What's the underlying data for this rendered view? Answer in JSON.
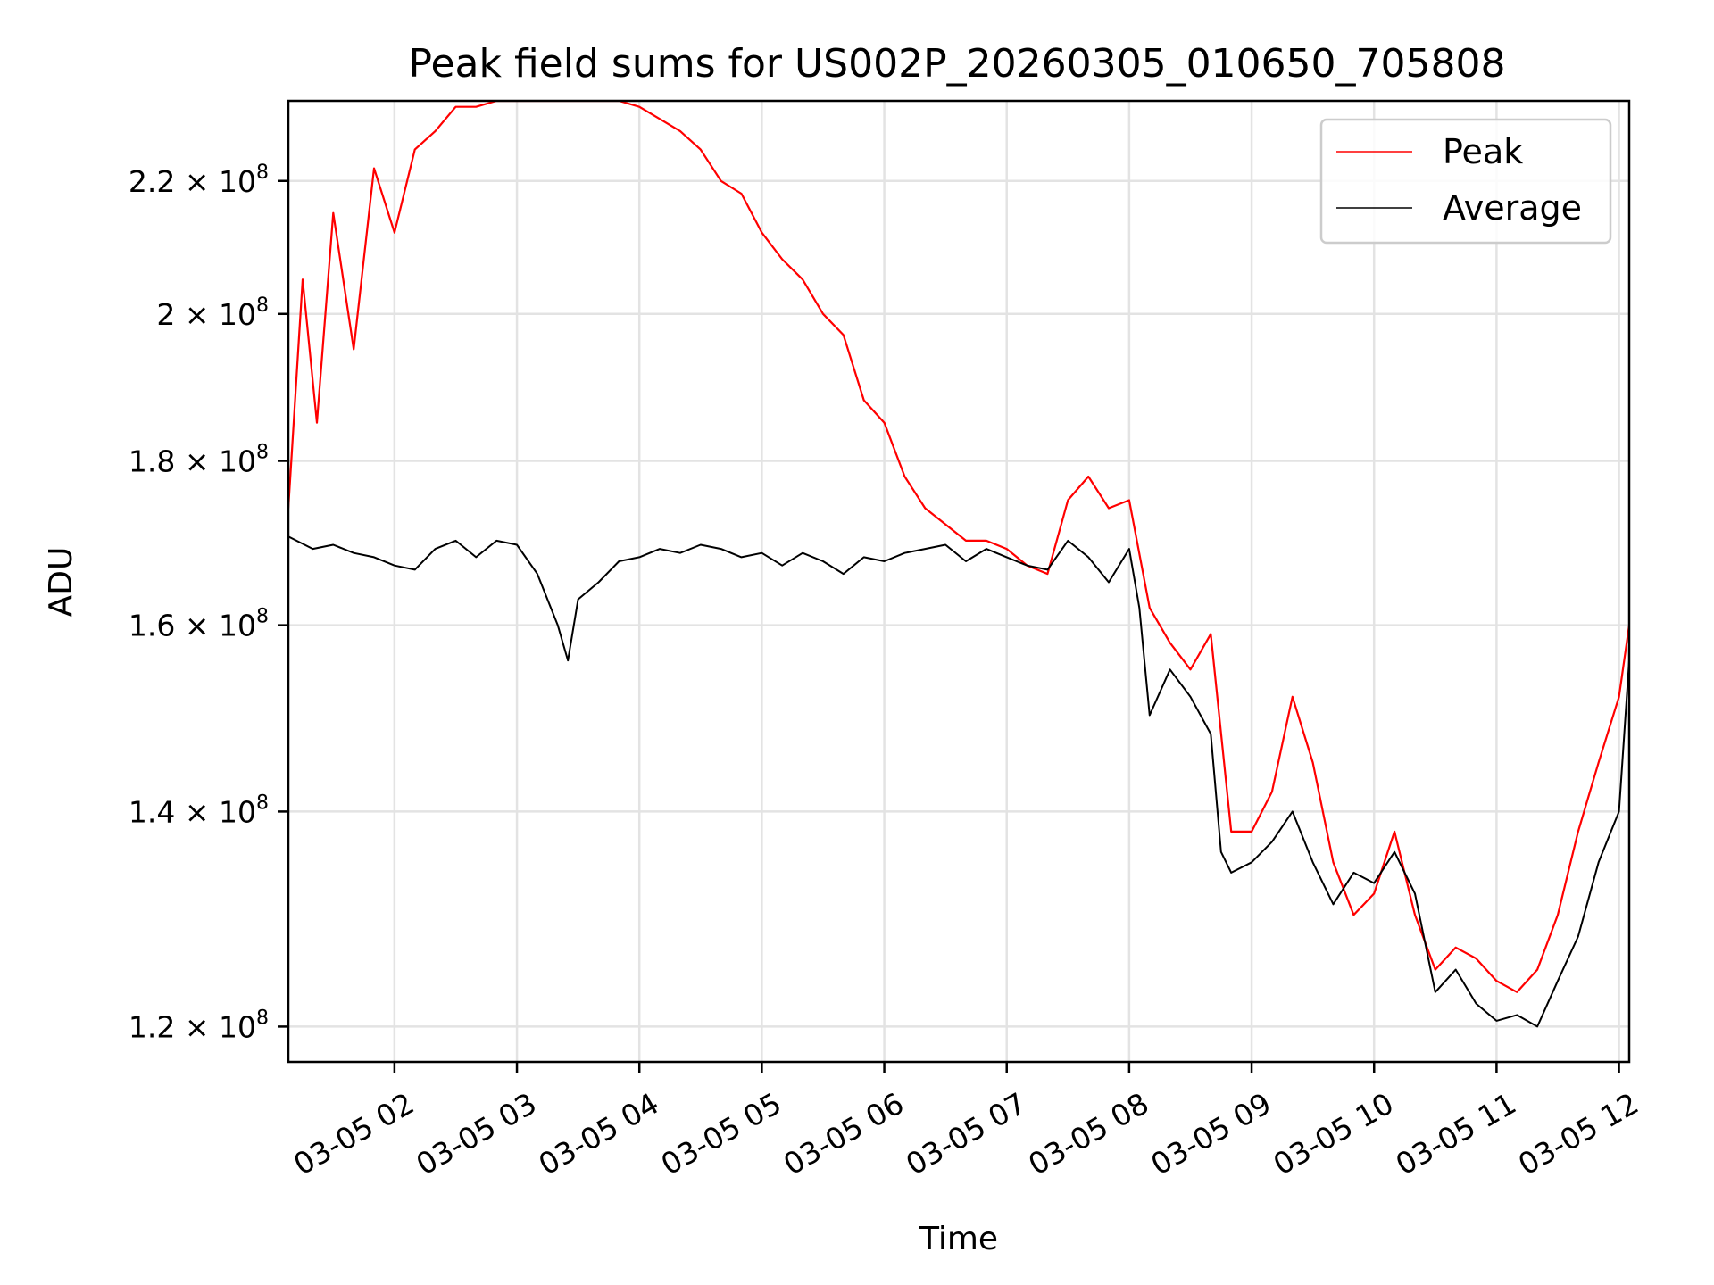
{
  "chart_data": {
    "type": "line",
    "title": "Peak field sums for US002P_20260305_010650_705808",
    "xlabel": "Time",
    "ylabel": "ADU",
    "x_range": [
      "2026-03-05T01:08",
      "2026-03-05T12:05"
    ],
    "ylim": [
      117000000,
      233000000
    ],
    "yscale": "log",
    "grid": true,
    "legend": "top-right",
    "x_ticks": [
      {
        "time": "2026-03-05T02:00",
        "label": "03-05 02"
      },
      {
        "time": "2026-03-05T03:00",
        "label": "03-05 03"
      },
      {
        "time": "2026-03-05T04:00",
        "label": "03-05 04"
      },
      {
        "time": "2026-03-05T05:00",
        "label": "03-05 05"
      },
      {
        "time": "2026-03-05T06:00",
        "label": "03-05 06"
      },
      {
        "time": "2026-03-05T07:00",
        "label": "03-05 07"
      },
      {
        "time": "2026-03-05T08:00",
        "label": "03-05 08"
      },
      {
        "time": "2026-03-05T09:00",
        "label": "03-05 09"
      },
      {
        "time": "2026-03-05T10:00",
        "label": "03-05 10"
      },
      {
        "time": "2026-03-05T11:00",
        "label": "03-05 11"
      },
      {
        "time": "2026-03-05T12:00",
        "label": "03-05 12"
      }
    ],
    "y_ticks": [
      {
        "value": 120000000,
        "mantissa": "1.2",
        "exponent": "8"
      },
      {
        "value": 140000000,
        "mantissa": "1.4",
        "exponent": "8"
      },
      {
        "value": 160000000,
        "mantissa": "1.6",
        "exponent": "8"
      },
      {
        "value": 180000000,
        "mantissa": "1.8",
        "exponent": "8"
      },
      {
        "value": 200000000,
        "mantissa": "2",
        "exponent": "8"
      },
      {
        "value": 220000000,
        "mantissa": "2.2",
        "exponent": "8"
      }
    ],
    "series": [
      {
        "name": "Peak",
        "color": "#ff0000",
        "values": [
          [
            "2026-03-05T01:08",
            174000000
          ],
          [
            "2026-03-05T01:15",
            205000000
          ],
          [
            "2026-03-05T01:22",
            185000000
          ],
          [
            "2026-03-05T01:30",
            215000000
          ],
          [
            "2026-03-05T01:40",
            195000000
          ],
          [
            "2026-03-05T01:50",
            222000000
          ],
          [
            "2026-03-05T02:00",
            212000000
          ],
          [
            "2026-03-05T02:10",
            225000000
          ],
          [
            "2026-03-05T02:20",
            228000000
          ],
          [
            "2026-03-05T02:30",
            232000000
          ],
          [
            "2026-03-05T02:40",
            232000000
          ],
          [
            "2026-03-05T02:50",
            233000000
          ],
          [
            "2026-03-05T03:00",
            233000000
          ],
          [
            "2026-03-05T03:10",
            233000000
          ],
          [
            "2026-03-05T03:20",
            233000000
          ],
          [
            "2026-03-05T03:30",
            233000000
          ],
          [
            "2026-03-05T03:40",
            233000000
          ],
          [
            "2026-03-05T03:50",
            233000000
          ],
          [
            "2026-03-05T04:00",
            232000000
          ],
          [
            "2026-03-05T04:10",
            230000000
          ],
          [
            "2026-03-05T04:20",
            228000000
          ],
          [
            "2026-03-05T04:30",
            225000000
          ],
          [
            "2026-03-05T04:40",
            220000000
          ],
          [
            "2026-03-05T04:50",
            218000000
          ],
          [
            "2026-03-05T05:00",
            212000000
          ],
          [
            "2026-03-05T05:10",
            208000000
          ],
          [
            "2026-03-05T05:20",
            205000000
          ],
          [
            "2026-03-05T05:30",
            200000000
          ],
          [
            "2026-03-05T05:40",
            197000000
          ],
          [
            "2026-03-05T05:50",
            188000000
          ],
          [
            "2026-03-05T06:00",
            185000000
          ],
          [
            "2026-03-05T06:10",
            178000000
          ],
          [
            "2026-03-05T06:20",
            174000000
          ],
          [
            "2026-03-05T06:30",
            172000000
          ],
          [
            "2026-03-05T06:40",
            170000000
          ],
          [
            "2026-03-05T06:50",
            170000000
          ],
          [
            "2026-03-05T07:00",
            169000000
          ],
          [
            "2026-03-05T07:10",
            167000000
          ],
          [
            "2026-03-05T07:20",
            166000000
          ],
          [
            "2026-03-05T07:30",
            175000000
          ],
          [
            "2026-03-05T07:40",
            178000000
          ],
          [
            "2026-03-05T07:50",
            174000000
          ],
          [
            "2026-03-05T08:00",
            175000000
          ],
          [
            "2026-03-05T08:10",
            162000000
          ],
          [
            "2026-03-05T08:20",
            158000000
          ],
          [
            "2026-03-05T08:30",
            155000000
          ],
          [
            "2026-03-05T08:40",
            159000000
          ],
          [
            "2026-03-05T08:50",
            138000000
          ],
          [
            "2026-03-05T09:00",
            138000000
          ],
          [
            "2026-03-05T09:10",
            142000000
          ],
          [
            "2026-03-05T09:20",
            152000000
          ],
          [
            "2026-03-05T09:30",
            145000000
          ],
          [
            "2026-03-05T09:40",
            135000000
          ],
          [
            "2026-03-05T09:50",
            130000000
          ],
          [
            "2026-03-05T10:00",
            132000000
          ],
          [
            "2026-03-05T10:10",
            138000000
          ],
          [
            "2026-03-05T10:20",
            130000000
          ],
          [
            "2026-03-05T10:30",
            125000000
          ],
          [
            "2026-03-05T10:40",
            127000000
          ],
          [
            "2026-03-05T10:50",
            126000000
          ],
          [
            "2026-03-05T11:00",
            124000000
          ],
          [
            "2026-03-05T11:10",
            123000000
          ],
          [
            "2026-03-05T11:20",
            125000000
          ],
          [
            "2026-03-05T11:30",
            130000000
          ],
          [
            "2026-03-05T11:40",
            138000000
          ],
          [
            "2026-03-05T11:50",
            145000000
          ],
          [
            "2026-03-05T12:00",
            152000000
          ],
          [
            "2026-03-05T12:05",
            160000000
          ]
        ]
      },
      {
        "name": "Average",
        "color": "#000000",
        "values": [
          [
            "2026-03-05T01:08",
            170500000
          ],
          [
            "2026-03-05T01:20",
            169000000
          ],
          [
            "2026-03-05T01:30",
            169500000
          ],
          [
            "2026-03-05T01:40",
            168500000
          ],
          [
            "2026-03-05T01:50",
            168000000
          ],
          [
            "2026-03-05T02:00",
            167000000
          ],
          [
            "2026-03-05T02:10",
            166500000
          ],
          [
            "2026-03-05T02:20",
            169000000
          ],
          [
            "2026-03-05T02:30",
            170000000
          ],
          [
            "2026-03-05T02:40",
            168000000
          ],
          [
            "2026-03-05T02:50",
            170000000
          ],
          [
            "2026-03-05T03:00",
            169500000
          ],
          [
            "2026-03-05T03:10",
            166000000
          ],
          [
            "2026-03-05T03:20",
            160000000
          ],
          [
            "2026-03-05T03:25",
            156000000
          ],
          [
            "2026-03-05T03:30",
            163000000
          ],
          [
            "2026-03-05T03:40",
            165000000
          ],
          [
            "2026-03-05T03:50",
            167500000
          ],
          [
            "2026-03-05T04:00",
            168000000
          ],
          [
            "2026-03-05T04:10",
            169000000
          ],
          [
            "2026-03-05T04:20",
            168500000
          ],
          [
            "2026-03-05T04:30",
            169500000
          ],
          [
            "2026-03-05T04:40",
            169000000
          ],
          [
            "2026-03-05T04:50",
            168000000
          ],
          [
            "2026-03-05T05:00",
            168500000
          ],
          [
            "2026-03-05T05:10",
            167000000
          ],
          [
            "2026-03-05T05:20",
            168500000
          ],
          [
            "2026-03-05T05:30",
            167500000
          ],
          [
            "2026-03-05T05:40",
            166000000
          ],
          [
            "2026-03-05T05:50",
            168000000
          ],
          [
            "2026-03-05T06:00",
            167500000
          ],
          [
            "2026-03-05T06:10",
            168500000
          ],
          [
            "2026-03-05T06:20",
            169000000
          ],
          [
            "2026-03-05T06:30",
            169500000
          ],
          [
            "2026-03-05T06:40",
            167500000
          ],
          [
            "2026-03-05T06:50",
            169000000
          ],
          [
            "2026-03-05T07:00",
            168000000
          ],
          [
            "2026-03-05T07:10",
            167000000
          ],
          [
            "2026-03-05T07:20",
            166500000
          ],
          [
            "2026-03-05T07:30",
            170000000
          ],
          [
            "2026-03-05T07:40",
            168000000
          ],
          [
            "2026-03-05T07:50",
            165000000
          ],
          [
            "2026-03-05T08:00",
            169000000
          ],
          [
            "2026-03-05T08:05",
            162000000
          ],
          [
            "2026-03-05T08:10",
            150000000
          ],
          [
            "2026-03-05T08:20",
            155000000
          ],
          [
            "2026-03-05T08:30",
            152000000
          ],
          [
            "2026-03-05T08:40",
            148000000
          ],
          [
            "2026-03-05T08:45",
            136000000
          ],
          [
            "2026-03-05T08:50",
            134000000
          ],
          [
            "2026-03-05T09:00",
            135000000
          ],
          [
            "2026-03-05T09:10",
            137000000
          ],
          [
            "2026-03-05T09:20",
            140000000
          ],
          [
            "2026-03-05T09:30",
            135000000
          ],
          [
            "2026-03-05T09:40",
            131000000
          ],
          [
            "2026-03-05T09:50",
            134000000
          ],
          [
            "2026-03-05T10:00",
            133000000
          ],
          [
            "2026-03-05T10:10",
            136000000
          ],
          [
            "2026-03-05T10:20",
            132000000
          ],
          [
            "2026-03-05T10:30",
            123000000
          ],
          [
            "2026-03-05T10:40",
            125000000
          ],
          [
            "2026-03-05T10:50",
            122000000
          ],
          [
            "2026-03-05T11:00",
            120500000
          ],
          [
            "2026-03-05T11:10",
            121000000
          ],
          [
            "2026-03-05T11:20",
            120000000
          ],
          [
            "2026-03-05T11:30",
            124000000
          ],
          [
            "2026-03-05T11:40",
            128000000
          ],
          [
            "2026-03-05T11:50",
            135000000
          ],
          [
            "2026-03-05T12:00",
            140000000
          ],
          [
            "2026-03-05T12:05",
            156000000
          ]
        ]
      }
    ]
  }
}
